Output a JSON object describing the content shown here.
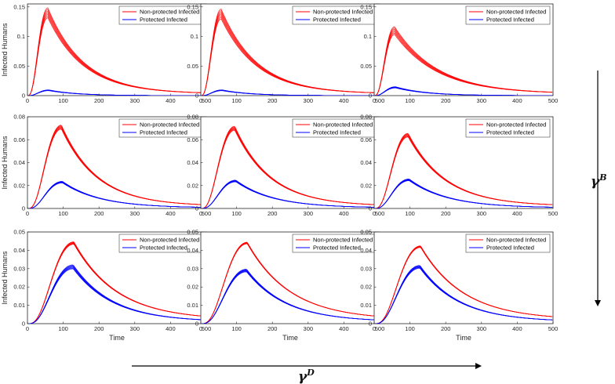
{
  "figure": {
    "ylabel": "Infected Humans",
    "xlabel": "Time",
    "gamma_b_label": "γ",
    "gamma_b_sup": "B",
    "gamma_d_label": "γ",
    "gamma_d_sup": "D"
  },
  "colors": {
    "nonprotected": "#ff0000",
    "protected": "#0000ff",
    "axis": "#262626"
  },
  "chart_data": [
    {
      "type": "line",
      "row": 1,
      "col": 1,
      "xlim": [
        0,
        500
      ],
      "ylim": [
        0,
        0.155
      ],
      "xticks": [
        "0",
        "100",
        "200",
        "300",
        "400",
        "500"
      ],
      "yticks": [
        "0",
        "0.05",
        "0.1",
        "0.15"
      ],
      "ytick_values": [
        0,
        0.05,
        0.1,
        0.15
      ],
      "ylabel": "Infected Humans",
      "xlabel": "",
      "legend": "top-right",
      "series": [
        {
          "name": "Non-protected Infected",
          "color": "red",
          "peak_x": 57,
          "peak_y": 0.14,
          "decay": 100,
          "spread": 0.12,
          "tail_y": 0.003
        },
        {
          "name": "Protected Infected",
          "color": "blue",
          "peak_x": 60,
          "peak_y": 0.009,
          "decay": 80,
          "spread": 0.15,
          "tail_y": 0
        }
      ]
    },
    {
      "type": "line",
      "row": 1,
      "col": 2,
      "xlim": [
        0,
        500
      ],
      "ylim": [
        0,
        0.155
      ],
      "xticks": [
        "0",
        "100",
        "200",
        "300",
        "400",
        "500"
      ],
      "yticks": [
        "0",
        "0.05",
        "0.1",
        "0.15"
      ],
      "ytick_values": [
        0,
        0.05,
        0.1,
        0.15
      ],
      "ylabel": "",
      "xlabel": "",
      "legend": "top-right",
      "series": [
        {
          "name": "Non-protected Infected",
          "color": "red",
          "peak_x": 57,
          "peak_y": 0.138,
          "decay": 100,
          "spread": 0.12,
          "tail_y": 0.003
        },
        {
          "name": "Protected Infected",
          "color": "blue",
          "peak_x": 60,
          "peak_y": 0.009,
          "decay": 80,
          "spread": 0.15,
          "tail_y": 0
        }
      ]
    },
    {
      "type": "line",
      "row": 1,
      "col": 3,
      "xlim": [
        0,
        500
      ],
      "ylim": [
        0,
        0.155
      ],
      "xticks": [
        "0",
        "100",
        "200",
        "300",
        "400",
        "500"
      ],
      "yticks": [
        "0",
        "0.05",
        "0.1",
        "0.15"
      ],
      "ytick_values": [
        0,
        0.05,
        0.1,
        0.15
      ],
      "ylabel": "",
      "xlabel": "",
      "legend": "top-right",
      "series": [
        {
          "name": "Non-protected Infected",
          "color": "red",
          "peak_x": 57,
          "peak_y": 0.11,
          "decay": 120,
          "spread": 0.12,
          "tail_y": 0.003
        },
        {
          "name": "Protected Infected",
          "color": "blue",
          "peak_x": 60,
          "peak_y": 0.014,
          "decay": 85,
          "spread": 0.15,
          "tail_y": 0
        }
      ]
    },
    {
      "type": "line",
      "row": 2,
      "col": 1,
      "xlim": [
        0,
        500
      ],
      "ylim": [
        0,
        0.08
      ],
      "xticks": [
        "0",
        "100",
        "200",
        "300",
        "400",
        "500"
      ],
      "yticks": [
        "0",
        "0.02",
        "0.04",
        "0.06",
        "0.08"
      ],
      "ytick_values": [
        0,
        0.02,
        0.04,
        0.06,
        0.08
      ],
      "ylabel": "Infected Humans",
      "xlabel": "",
      "legend": "top-right",
      "series": [
        {
          "name": "Non-protected Infected",
          "color": "red",
          "peak_x": 95,
          "peak_y": 0.071,
          "decay": 100,
          "spread": 0.05,
          "tail_y": 0.002
        },
        {
          "name": "Protected Infected",
          "color": "blue",
          "peak_x": 98,
          "peak_y": 0.023,
          "decay": 105,
          "spread": 0.06,
          "tail_y": 0.0005
        }
      ]
    },
    {
      "type": "line",
      "row": 2,
      "col": 2,
      "xlim": [
        0,
        500
      ],
      "ylim": [
        0,
        0.08
      ],
      "xticks": [
        "0",
        "100",
        "200",
        "300",
        "400",
        "500"
      ],
      "yticks": [
        "0",
        "0.02",
        "0.04",
        "0.06",
        "0.08"
      ],
      "ytick_values": [
        0,
        0.02,
        0.04,
        0.06,
        0.08
      ],
      "ylabel": "",
      "xlabel": "",
      "legend": "top-right",
      "series": [
        {
          "name": "Non-protected Infected",
          "color": "red",
          "peak_x": 95,
          "peak_y": 0.07,
          "decay": 100,
          "spread": 0.05,
          "tail_y": 0.002
        },
        {
          "name": "Protected Infected",
          "color": "blue",
          "peak_x": 98,
          "peak_y": 0.024,
          "decay": 105,
          "spread": 0.06,
          "tail_y": 0.0005
        }
      ]
    },
    {
      "type": "line",
      "row": 2,
      "col": 3,
      "xlim": [
        0,
        500
      ],
      "ylim": [
        0,
        0.08
      ],
      "xticks": [
        "0",
        "100",
        "200",
        "300",
        "400",
        "500"
      ],
      "yticks": [
        "0",
        "0.02",
        "0.04",
        "0.06",
        "0.08"
      ],
      "ytick_values": [
        0,
        0.02,
        0.04,
        0.06,
        0.08
      ],
      "ylabel": "",
      "xlabel": "",
      "legend": "top-right",
      "series": [
        {
          "name": "Non-protected Infected",
          "color": "red",
          "peak_x": 95,
          "peak_y": 0.064,
          "decay": 105,
          "spread": 0.05,
          "tail_y": 0.002
        },
        {
          "name": "Protected Infected",
          "color": "blue",
          "peak_x": 98,
          "peak_y": 0.025,
          "decay": 108,
          "spread": 0.06,
          "tail_y": 0.0005
        }
      ]
    },
    {
      "type": "line",
      "row": 3,
      "col": 1,
      "xlim": [
        0,
        500
      ],
      "ylim": [
        0,
        0.05
      ],
      "xticks": [
        "0",
        "100",
        "200",
        "300",
        "400",
        "500"
      ],
      "yticks": [
        "0",
        "0.01",
        "0.02",
        "0.03",
        "0.04",
        "0.05"
      ],
      "ytick_values": [
        0,
        0.01,
        0.02,
        0.03,
        0.04,
        0.05
      ],
      "ylabel": "Infected Humans",
      "xlabel": "Time",
      "legend": "top-right",
      "series": [
        {
          "name": "Non-protected Infected",
          "color": "red",
          "peak_x": 130,
          "peak_y": 0.044,
          "decay": 120,
          "spread": 0.03,
          "tail_y": 0.002
        },
        {
          "name": "Protected Infected",
          "color": "blue",
          "peak_x": 128,
          "peak_y": 0.031,
          "decay": 110,
          "spread": 0.07,
          "tail_y": 0.001
        }
      ]
    },
    {
      "type": "line",
      "row": 3,
      "col": 2,
      "xlim": [
        0,
        500
      ],
      "ylim": [
        0,
        0.05
      ],
      "xticks": [
        "0",
        "100",
        "200",
        "300",
        "400",
        "500"
      ],
      "yticks": [
        "0",
        "0.01",
        "0.02",
        "0.03",
        "0.04",
        "0.05"
      ],
      "ytick_values": [
        0,
        0.01,
        0.02,
        0.03,
        0.04,
        0.05
      ],
      "ylabel": "",
      "xlabel": "Time",
      "legend": "top-right",
      "series": [
        {
          "name": "Non-protected Infected",
          "color": "red",
          "peak_x": 130,
          "peak_y": 0.044,
          "decay": 120,
          "spread": 0.02,
          "tail_y": 0.002
        },
        {
          "name": "Protected Infected",
          "color": "blue",
          "peak_x": 128,
          "peak_y": 0.029,
          "decay": 110,
          "spread": 0.05,
          "tail_y": 0.001
        }
      ]
    },
    {
      "type": "line",
      "row": 3,
      "col": 3,
      "xlim": [
        0,
        500
      ],
      "ylim": [
        0,
        0.05
      ],
      "xticks": [
        "0",
        "100",
        "200",
        "300",
        "400",
        "500"
      ],
      "yticks": [
        "0",
        "0.01",
        "0.02",
        "0.03",
        "0.04",
        "0.05"
      ],
      "ytick_values": [
        0,
        0.01,
        0.02,
        0.03,
        0.04,
        0.05
      ],
      "ylabel": "",
      "xlabel": "Time",
      "legend": "top-right",
      "series": [
        {
          "name": "Non-protected Infected",
          "color": "red",
          "peak_x": 130,
          "peak_y": 0.042,
          "decay": 120,
          "spread": 0.02,
          "tail_y": 0.002
        },
        {
          "name": "Protected Infected",
          "color": "blue",
          "peak_x": 128,
          "peak_y": 0.031,
          "decay": 110,
          "spread": 0.05,
          "tail_y": 0.001
        }
      ]
    }
  ]
}
